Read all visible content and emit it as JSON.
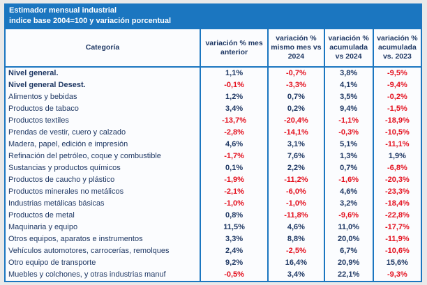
{
  "title_bar": {
    "line1": "Estimador mensual industrial",
    "line2": "indice base 2004=100 y variación porcentual"
  },
  "colors": {
    "accent_blue": "#1b76c0",
    "positive_navy": "#1f3864",
    "negative_red": "#e4101e",
    "cell_background": "#fbfcfe",
    "page_background": "#e9e9e9"
  },
  "chart_data": {
    "type": "table",
    "title": "Estimador mensual industrial",
    "subtitle": "indice base 2004=100 y variación porcentual",
    "legend_note": "negative values shown in red, positive values in dark navy",
    "columns": [
      "Categoría",
      "variación % mes anterior",
      "variación % mismo mes vs 2024",
      "variación % acumulada vs 2024",
      "variación % acumulada vs. 2023"
    ],
    "rows": [
      {
        "category": "Nivel general.",
        "bold": true,
        "values": [
          "1,1%",
          "-0,7%",
          "3,8%",
          "-9,5%"
        ]
      },
      {
        "category": "Nivel general Desest.",
        "bold": true,
        "values": [
          "-0,1%",
          "-3,3%",
          "4,1%",
          "-9,4%"
        ]
      },
      {
        "category": "Alimentos y bebidas",
        "bold": false,
        "values": [
          "1,2%",
          "0,7%",
          "3,5%",
          "-0,2%"
        ]
      },
      {
        "category": "Productos de tabaco",
        "bold": false,
        "values": [
          "3,4%",
          "0,2%",
          "9,4%",
          "-1,5%"
        ]
      },
      {
        "category": "Productos textiles",
        "bold": false,
        "values": [
          "-13,7%",
          "-20,4%",
          "-1,1%",
          "-18,9%"
        ]
      },
      {
        "category": "Prendas de vestir, cuero y calzado",
        "bold": false,
        "values": [
          "-2,8%",
          "-14,1%",
          "-0,3%",
          "-10,5%"
        ]
      },
      {
        "category": "Madera, papel, edición e impresión",
        "bold": false,
        "values": [
          "4,6%",
          "3,1%",
          "5,1%",
          "-11,1%"
        ]
      },
      {
        "category": "Refinación del petróleo, coque y combustible",
        "bold": false,
        "values": [
          "-1,7%",
          "7,6%",
          "1,3%",
          "1,9%"
        ]
      },
      {
        "category": "Sustancias y productos químicos",
        "bold": false,
        "values": [
          "0,1%",
          "2,2%",
          "0,7%",
          "-6,8%"
        ]
      },
      {
        "category": "Productos de caucho y plástico",
        "bold": false,
        "values": [
          "-1,9%",
          "-11,2%",
          "-1,6%",
          "-20,3%"
        ]
      },
      {
        "category": "Productos minerales no metálicos",
        "bold": false,
        "values": [
          "-2,1%",
          "-6,0%",
          "4,6%",
          "-23,3%"
        ]
      },
      {
        "category": "Industrias metálicas básicas",
        "bold": false,
        "values": [
          "-1,0%",
          "-1,0%",
          "3,2%",
          "-18,4%"
        ]
      },
      {
        "category": "Productos de metal",
        "bold": false,
        "values": [
          "0,8%",
          "-11,8%",
          "-9,6%",
          "-22,8%"
        ]
      },
      {
        "category": "Maquinaria y equipo",
        "bold": false,
        "values": [
          "11,5%",
          "4,6%",
          "11,0%",
          "-17,7%"
        ]
      },
      {
        "category": "Otros equipos, aparatos e instrumentos",
        "bold": false,
        "values": [
          "3,3%",
          "8,8%",
          "20,0%",
          "-11,9%"
        ]
      },
      {
        "category": "Vehículos automotores, carrocerías, remolques",
        "bold": false,
        "values": [
          "2,4%",
          "-2,5%",
          "6,7%",
          "-10,6%"
        ]
      },
      {
        "category": "Otro equipo de transporte",
        "bold": false,
        "values": [
          "9,2%",
          "16,4%",
          "20,9%",
          "15,6%"
        ]
      },
      {
        "category": "Muebles y colchones, y otras industrias manuf",
        "bold": false,
        "values": [
          "-0,5%",
          "3,4%",
          "22,1%",
          "-9,3%"
        ]
      }
    ]
  }
}
